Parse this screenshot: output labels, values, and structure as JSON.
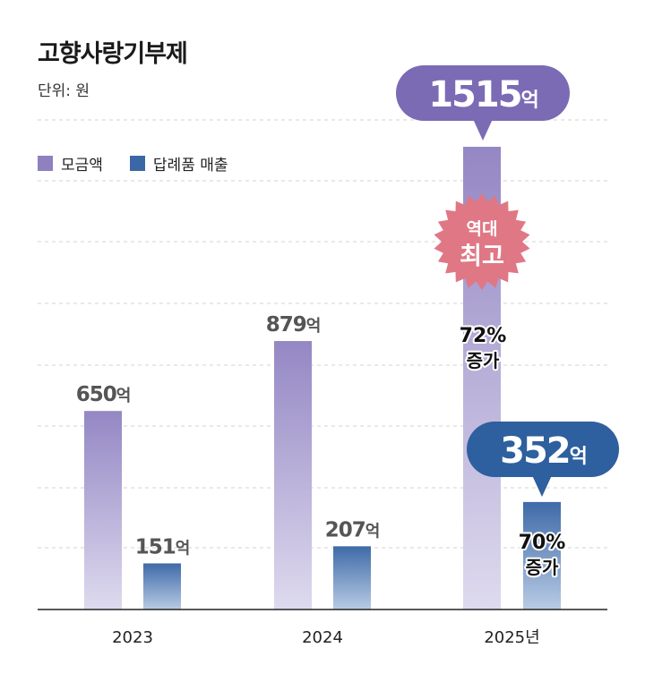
{
  "title": "고향사랑기부제",
  "unit_label": "단위: 원",
  "legend": [
    {
      "name": "모금액",
      "color": "#8f80bf"
    },
    {
      "name": "답례품 매출",
      "color": "#3a67a6"
    }
  ],
  "colors": {
    "donation_top": "#9487c4",
    "donation_bottom": "#dedaee",
    "sales_top": "#3f6aa8",
    "sales_bottom": "#b8cbe4",
    "bubble_donation": "#7b6ab4",
    "bubble_sales": "#2e5f9e",
    "badge": "#e07785",
    "grid": "#d3d3d3"
  },
  "chart_data": {
    "type": "bar",
    "title": "고향사랑기부제",
    "unit": "원",
    "categories": [
      "2023",
      "2024",
      "2025년"
    ],
    "series": [
      {
        "name": "모금액",
        "values": [
          650,
          879,
          1515
        ],
        "labels": [
          "650억",
          "879억",
          "1515억"
        ]
      },
      {
        "name": "답례품 매출",
        "values": [
          151,
          207,
          352
        ],
        "labels": [
          "151억",
          "207억",
          "352억"
        ]
      }
    ],
    "ylim": [
      0,
      1600
    ],
    "grid": true,
    "legend_position": "top-left",
    "annotations": {
      "record_badge": [
        "역대",
        "최고"
      ],
      "donation_increase": {
        "pct": "72%",
        "word": "증가"
      },
      "sales_increase": {
        "pct": "70%",
        "word": "증가"
      },
      "highlight_number_donation": "1515",
      "highlight_number_sales": "352",
      "highlight_unit": "억"
    }
  }
}
